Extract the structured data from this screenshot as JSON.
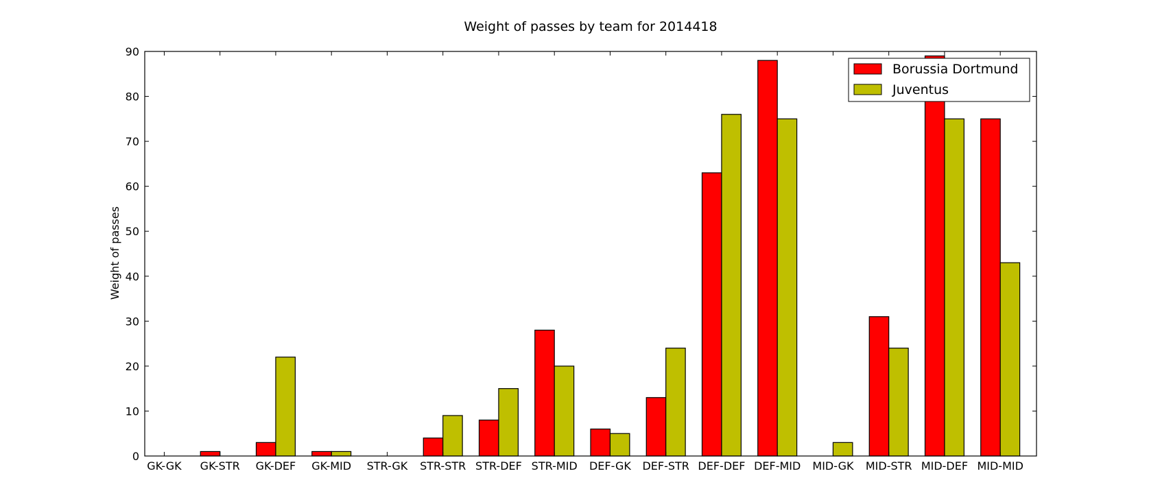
{
  "chart_data": {
    "type": "bar",
    "title": "Weight of passes by team for 2014418",
    "xlabel": "",
    "ylabel": "Weight of passes",
    "ylim": [
      0,
      90
    ],
    "yticks": [
      0,
      10,
      20,
      30,
      40,
      50,
      60,
      70,
      80,
      90
    ],
    "grid": false,
    "legend_position": "top-right",
    "categories": [
      "GK-GK",
      "GK-STR",
      "GK-DEF",
      "GK-MID",
      "STR-GK",
      "STR-STR",
      "STR-DEF",
      "STR-MID",
      "DEF-GK",
      "DEF-STR",
      "DEF-DEF",
      "DEF-MID",
      "MID-GK",
      "MID-STR",
      "MID-DEF",
      "MID-MID"
    ],
    "series": [
      {
        "name": "Borussia Dortmund",
        "color": "#ff0000",
        "values": [
          0,
          1,
          3,
          1,
          0,
          4,
          8,
          28,
          6,
          13,
          63,
          88,
          0,
          31,
          89,
          75
        ]
      },
      {
        "name": "Juventus",
        "color": "#bfbf00",
        "values": [
          0,
          0,
          22,
          1,
          0,
          9,
          15,
          20,
          5,
          24,
          76,
          75,
          3,
          24,
          75,
          43
        ]
      }
    ]
  }
}
